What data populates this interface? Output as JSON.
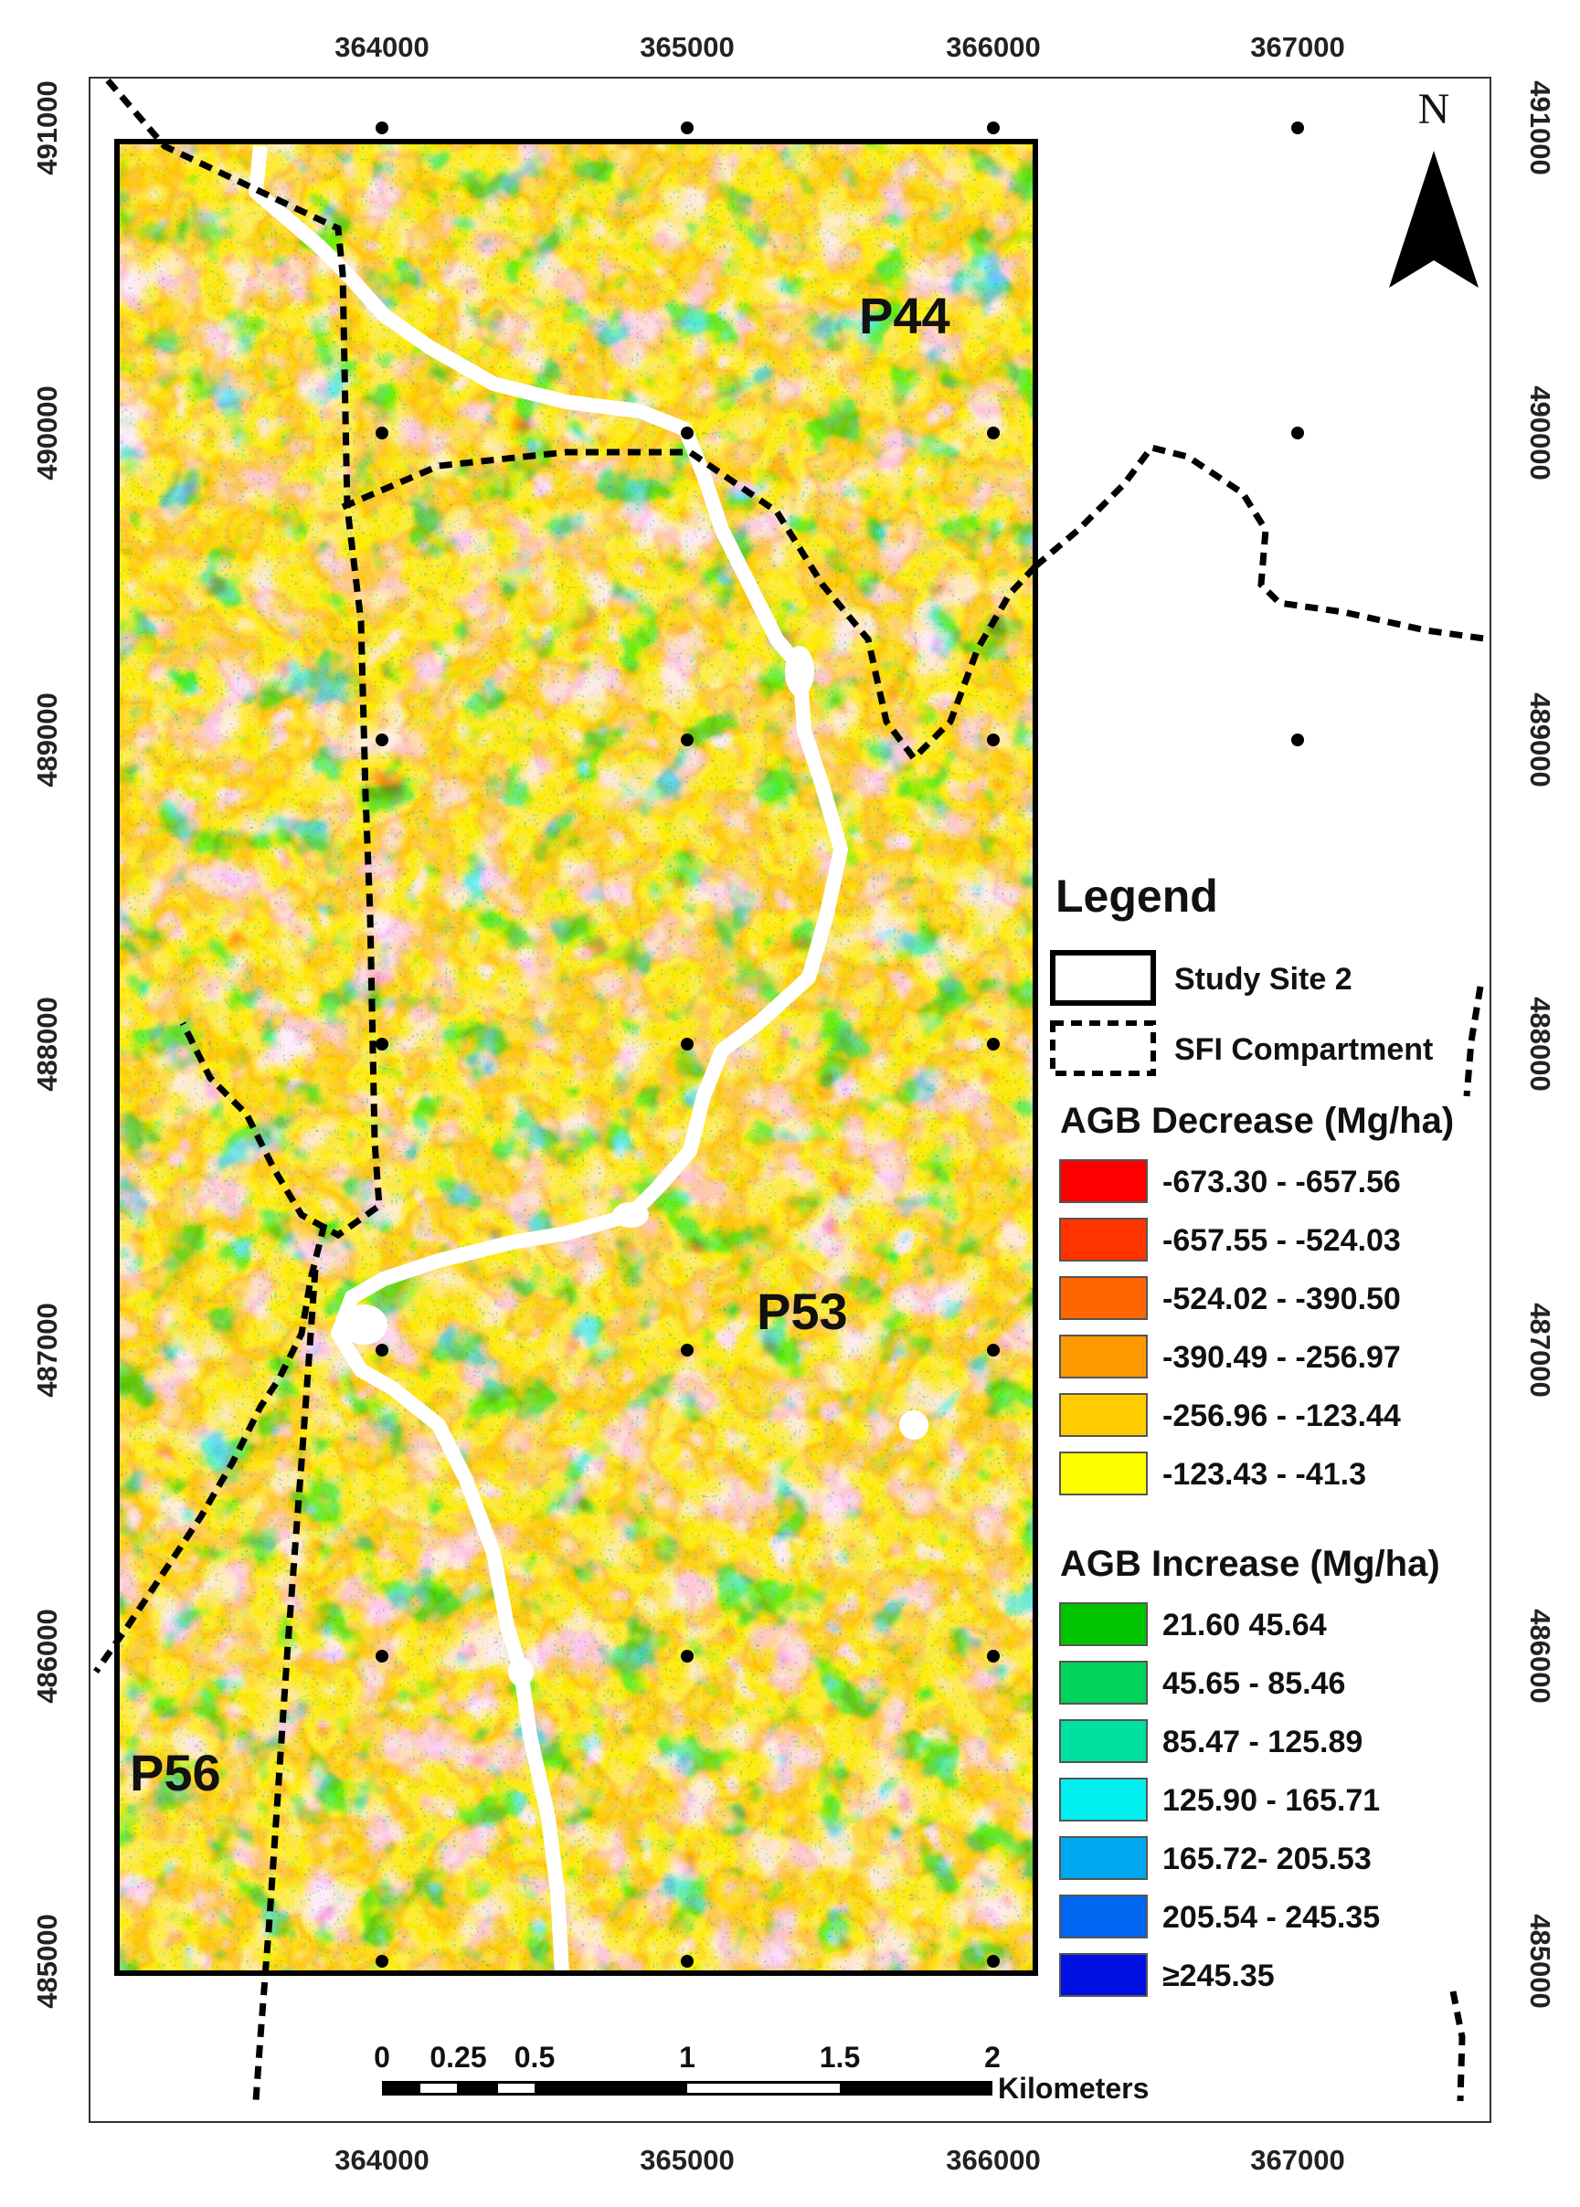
{
  "axes": {
    "x_ticks": [
      "364000",
      "365000",
      "366000",
      "367000"
    ],
    "y_ticks": [
      "491000",
      "490000",
      "489000",
      "488000",
      "487000",
      "486000",
      "485000"
    ]
  },
  "plots": [
    "P44",
    "P53",
    "P56"
  ],
  "north_arrow": {
    "letter": "N",
    "icon": "north-arrow-icon"
  },
  "legend": {
    "title": "Legend",
    "study_site": "Study Site 2",
    "sfi_compartment": "SFI Compartment",
    "decrease_title": "AGB Decrease (Mg/ha)",
    "decrease_classes": [
      {
        "label": "-673.30 - -657.56",
        "color": "#ff0000"
      },
      {
        "label": "-657.55 - -524.03",
        "color": "#ff3300"
      },
      {
        "label": "-524.02 - -390.50",
        "color": "#ff6600"
      },
      {
        "label": "-390.49 - -256.97",
        "color": "#ff9900"
      },
      {
        "label": "-256.96 - -123.44",
        "color": "#ffcc00"
      },
      {
        "label": "-123.43 - -41.3",
        "color": "#ffff00"
      }
    ],
    "increase_title": "AGB Increase (Mg/ha)",
    "increase_classes": [
      {
        "label": "21.60 45.64",
        "color": "#00c400"
      },
      {
        "label": "45.65 - 85.46",
        "color": "#00d45a"
      },
      {
        "label": "85.47 - 125.89",
        "color": "#00e0a0"
      },
      {
        "label": "125.90 - 165.71",
        "color": "#00f0f0"
      },
      {
        "label": "165.72- 205.53",
        "color": "#00a8f0"
      },
      {
        "label": "205.54 - 245.35",
        "color": "#0066f0"
      },
      {
        "label": "≥245.35",
        "color": "#0010e0"
      }
    ]
  },
  "scale_bar": {
    "labels": [
      "0",
      "0.25",
      "0.5",
      "1",
      "1.5",
      "2"
    ],
    "unit": "Kilometers"
  }
}
